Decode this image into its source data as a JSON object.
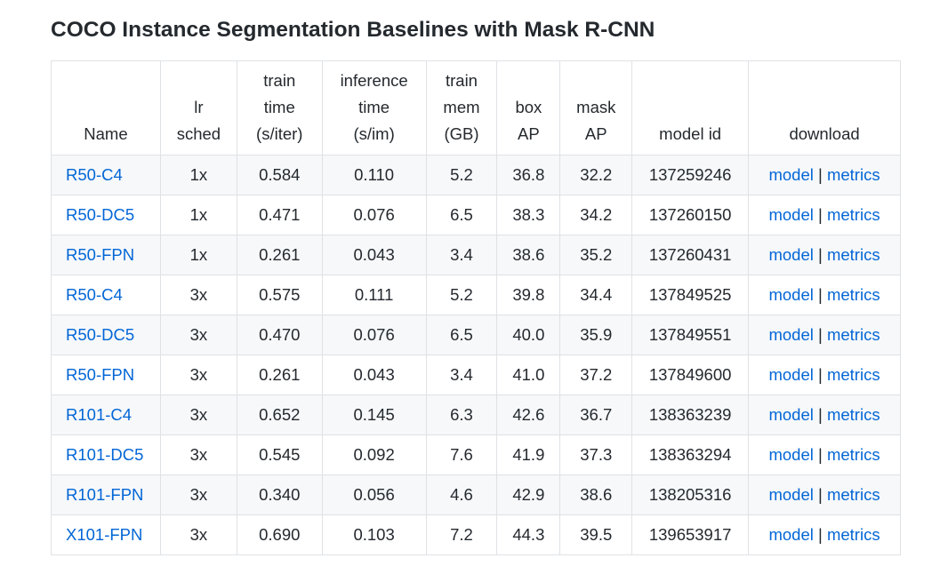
{
  "page": {
    "title": "COCO Instance Segmentation Baselines with Mask R-CNN"
  },
  "colors": {
    "link": "#0366d6",
    "text": "#24292e",
    "border": "#dfe2e5",
    "stripe": "#f6f8fa",
    "marker": "#ff0000"
  },
  "table": {
    "headers": [
      [
        "Name"
      ],
      [
        "lr",
        "sched"
      ],
      [
        "train",
        "time",
        "(s/iter)"
      ],
      [
        "inference",
        "time",
        "(s/im)"
      ],
      [
        "train",
        "mem",
        "(GB)"
      ],
      [
        "box",
        "AP"
      ],
      [
        "mask",
        "AP"
      ],
      [
        "model id"
      ],
      [
        "download"
      ]
    ],
    "rows": [
      {
        "name": "R50-C4",
        "lr_sched": "1x",
        "train_time": "0.584",
        "inference_time": "0.110",
        "train_mem": "5.2",
        "box_ap": "36.8",
        "mask_ap": "32.2",
        "model_id": "137259246",
        "model_link": "model",
        "sep": "|",
        "metrics_link": "metrics"
      },
      {
        "name": "R50-DC5",
        "lr_sched": "1x",
        "train_time": "0.471",
        "inference_time": "0.076",
        "train_mem": "6.5",
        "box_ap": "38.3",
        "mask_ap": "34.2",
        "model_id": "137260150",
        "model_link": "model",
        "sep": "|",
        "metrics_link": "metrics"
      },
      {
        "name": "R50-FPN",
        "lr_sched": "1x",
        "train_time": "0.261",
        "inference_time": "0.043",
        "train_mem": "3.4",
        "box_ap": "38.6",
        "mask_ap": "35.2",
        "model_id": "137260431",
        "model_link": "model",
        "sep": "|",
        "metrics_link": "metrics"
      },
      {
        "name": "R50-C4",
        "lr_sched": "3x",
        "train_time": "0.575",
        "inference_time": "0.111",
        "train_mem": "5.2",
        "box_ap": "39.8",
        "mask_ap": "34.4",
        "model_id": "137849525",
        "model_link": "model",
        "sep": "|",
        "metrics_link": "metrics"
      },
      {
        "name": "R50-DC5",
        "lr_sched": "3x",
        "train_time": "0.470",
        "inference_time": "0.076",
        "train_mem": "6.5",
        "box_ap": "40.0",
        "mask_ap": "35.9",
        "model_id": "137849551",
        "model_link": "model",
        "sep": "|",
        "metrics_link": "metrics"
      },
      {
        "name": "R50-FPN",
        "lr_sched": "3x",
        "train_time": "0.261",
        "inference_time": "0.043",
        "train_mem": "3.4",
        "box_ap": "41.0",
        "mask_ap": "37.2",
        "model_id": "137849600",
        "model_link": "model",
        "sep": "|",
        "metrics_link": "metrics"
      },
      {
        "name": "R101-C4",
        "lr_sched": "3x",
        "train_time": "0.652",
        "inference_time": "0.145",
        "train_mem": "6.3",
        "box_ap": "42.6",
        "mask_ap": "36.7",
        "model_id": "138363239",
        "model_link": "model",
        "sep": "|",
        "metrics_link": "metrics"
      },
      {
        "name": "R101-DC5",
        "lr_sched": "3x",
        "train_time": "0.545",
        "inference_time": "0.092",
        "train_mem": "7.6",
        "box_ap": "41.9",
        "mask_ap": "37.3",
        "model_id": "138363294",
        "model_link": "model",
        "sep": "|",
        "metrics_link": "metrics"
      },
      {
        "name": "R101-FPN",
        "lr_sched": "3x",
        "train_time": "0.340",
        "inference_time": "0.056",
        "train_mem": "4.6",
        "box_ap": "42.9",
        "mask_ap": "38.6",
        "model_id": "138205316",
        "model_link": "model",
        "sep": "|",
        "metrics_link": "metrics"
      },
      {
        "name": "X101-FPN",
        "lr_sched": "3x",
        "train_time": "0.690",
        "inference_time": "0.103",
        "train_mem": "7.2",
        "box_ap": "44.3",
        "mask_ap": "39.5",
        "model_id": "139653917",
        "model_link": "model",
        "sep": "|",
        "metrics_link": "metrics"
      }
    ]
  }
}
